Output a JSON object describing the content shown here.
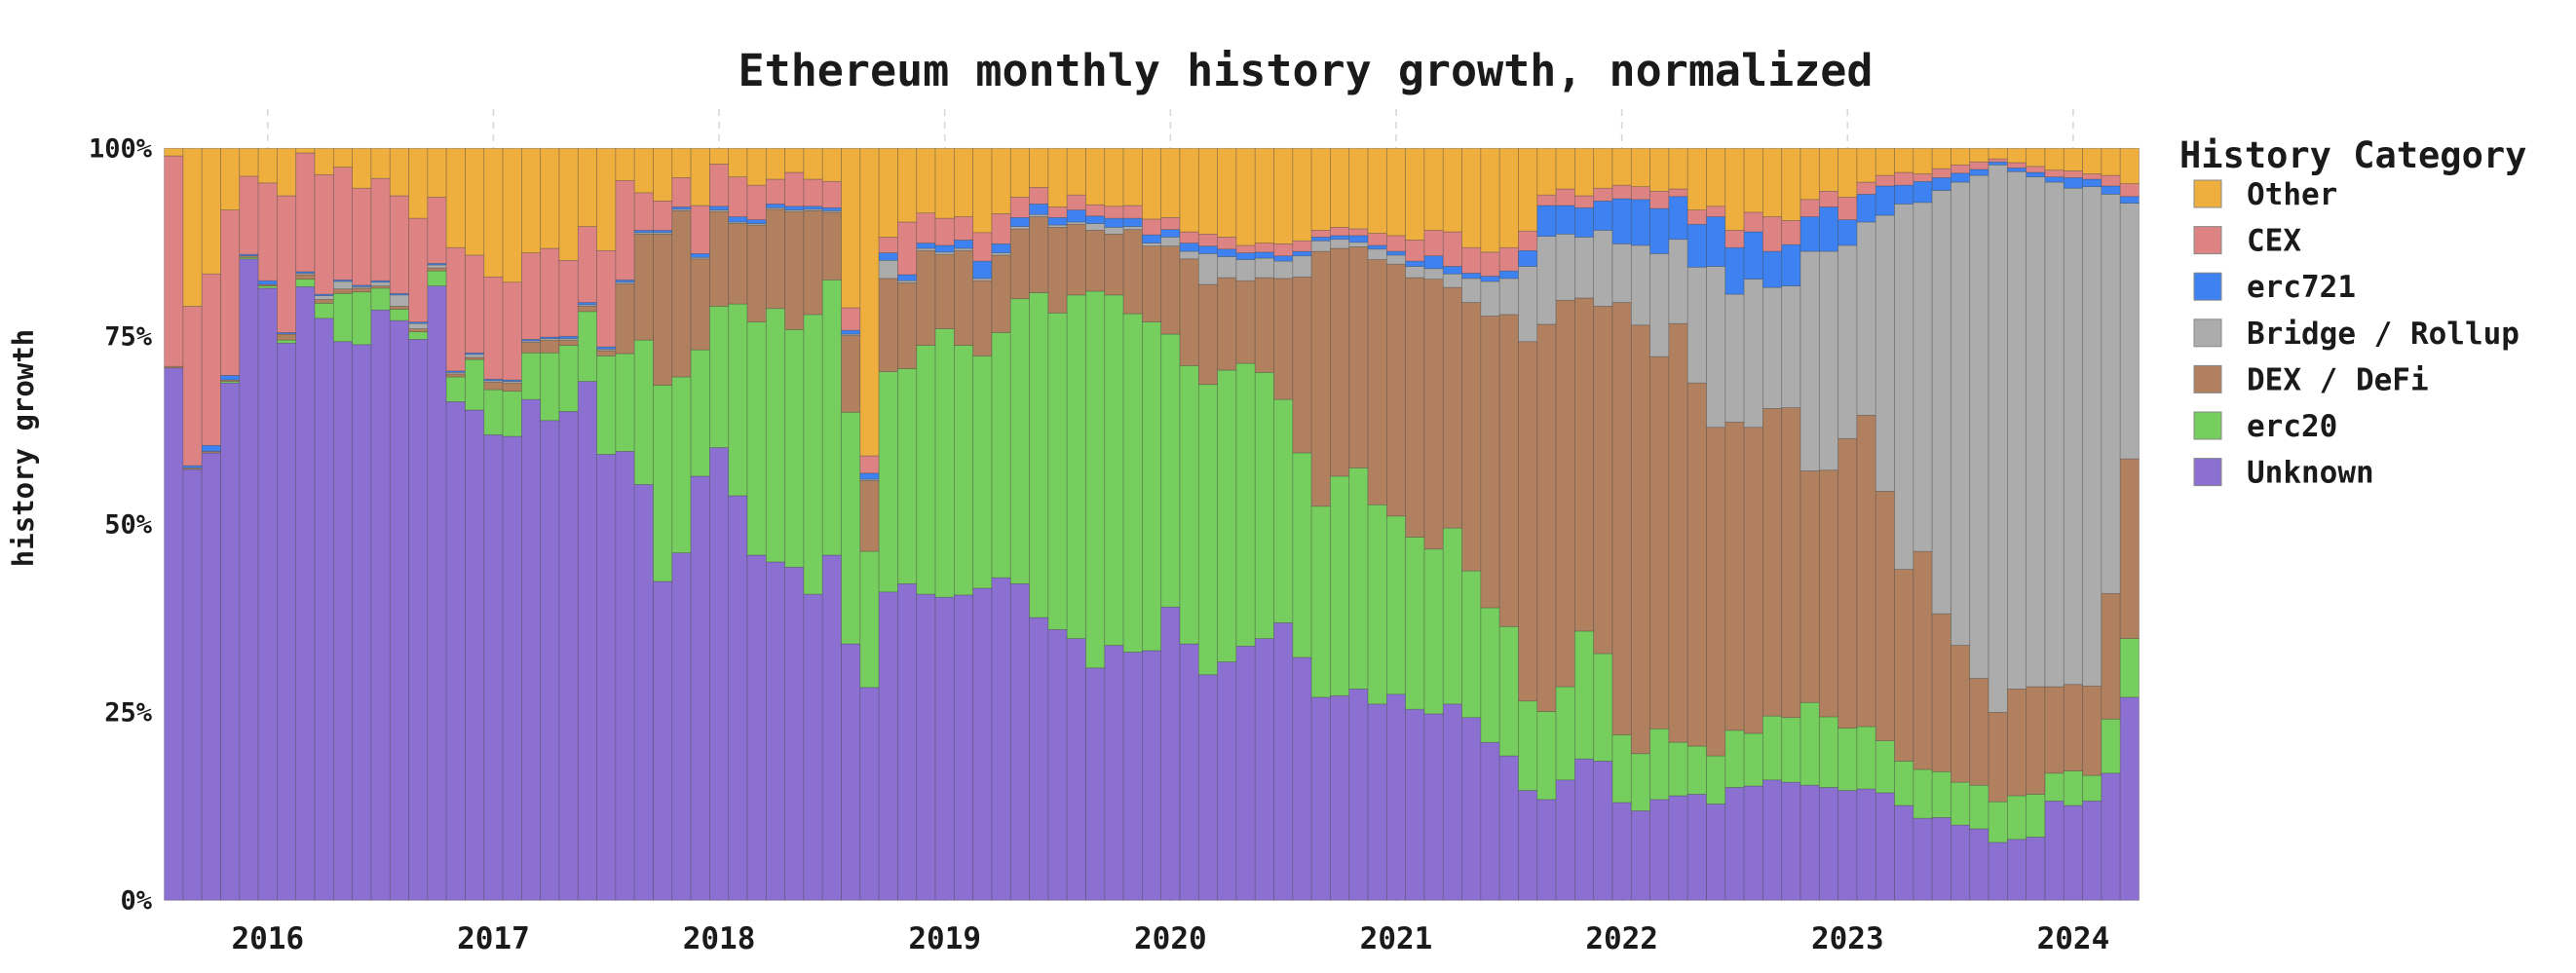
{
  "figure": {
    "title": "Ethereum monthly history growth, normalized",
    "background": "#ffffff",
    "gridline_color": "#d8d8d8"
  },
  "y_axis": {
    "label": "history growth",
    "tick_values": [
      0,
      25,
      50,
      75,
      100
    ],
    "tick_labels": [
      "0%",
      "25%",
      "50%",
      "75%",
      "100%"
    ]
  },
  "x_axis": {
    "tick_labels": [
      "2016",
      "2017",
      "2018",
      "2019",
      "2020",
      "2021",
      "2022",
      "2023",
      "2024"
    ]
  },
  "legend": {
    "title": "History Category",
    "items": [
      {
        "label": "Other",
        "color": "#EFAF3E"
      },
      {
        "label": "CEX",
        "color": "#DE8383"
      },
      {
        "label": "erc721",
        "color": "#3D82F0"
      },
      {
        "label": "Bridge / Rollup",
        "color": "#ACACAC"
      },
      {
        "label": "DEX / DeFi",
        "color": "#B0805F"
      },
      {
        "label": "erc20",
        "color": "#75CE5D"
      },
      {
        "label": "Unknown",
        "color": "#8B70D2"
      }
    ]
  },
  "chart_data": {
    "type": "bar",
    "stacked": true,
    "normalized": true,
    "title": "Ethereum monthly history growth, normalized",
    "xlabel": "",
    "ylabel": "history growth",
    "ylim": [
      0,
      100
    ],
    "legend_position": "right",
    "grid": "dashed-vertical-at-years",
    "stack_order_bottom_to_top": [
      "Unknown",
      "erc20",
      "DEX / DeFi",
      "Bridge / Rollup",
      "erc721",
      "CEX",
      "Other"
    ],
    "x": [
      "2015-08",
      "2015-09",
      "2015-10",
      "2015-11",
      "2015-12",
      "2016-01",
      "2016-02",
      "2016-03",
      "2016-04",
      "2016-05",
      "2016-06",
      "2016-07",
      "2016-08",
      "2016-09",
      "2016-10",
      "2016-11",
      "2016-12",
      "2017-01",
      "2017-02",
      "2017-03",
      "2017-04",
      "2017-05",
      "2017-06",
      "2017-07",
      "2017-08",
      "2017-09",
      "2017-10",
      "2017-11",
      "2017-12",
      "2018-01",
      "2018-02",
      "2018-03",
      "2018-04",
      "2018-05",
      "2018-06",
      "2018-07",
      "2018-08",
      "2018-09",
      "2018-10",
      "2018-11",
      "2018-12",
      "2019-01",
      "2019-02",
      "2019-03",
      "2019-04",
      "2019-05",
      "2019-06",
      "2019-07",
      "2019-08",
      "2019-09",
      "2019-10",
      "2019-11",
      "2019-12",
      "2020-01",
      "2020-02",
      "2020-03",
      "2020-04",
      "2020-05",
      "2020-06",
      "2020-07",
      "2020-08",
      "2020-09",
      "2020-10",
      "2020-11",
      "2020-12",
      "2021-01",
      "2021-02",
      "2021-03",
      "2021-04",
      "2021-05",
      "2021-06",
      "2021-07",
      "2021-08",
      "2021-09",
      "2021-10",
      "2021-11",
      "2021-12",
      "2022-01",
      "2022-02",
      "2022-03",
      "2022-04",
      "2022-05",
      "2022-06",
      "2022-07",
      "2022-08",
      "2022-09",
      "2022-10",
      "2022-11",
      "2022-12",
      "2023-01",
      "2023-02",
      "2023-03",
      "2023-04",
      "2023-05",
      "2023-06",
      "2023-07",
      "2023-08",
      "2023-09",
      "2023-10",
      "2023-11",
      "2023-12",
      "2024-01",
      "2024-02",
      "2024-03",
      "2024-04"
    ],
    "series": [
      {
        "name": "Unknown",
        "color": "#8B70D2",
        "values": [
          70.8,
          57.3,
          59.5,
          68.8,
          85.3,
          81.4,
          74.1,
          81.6,
          77.4,
          74.3,
          73.9,
          78.5,
          77.1,
          74.6,
          81.7,
          66.3,
          65.2,
          61.9,
          61.7,
          66.6,
          63.8,
          65.0,
          69.0,
          59.3,
          59.7,
          55.3,
          42.4,
          46.2,
          56.4,
          60.2,
          53.8,
          45.9,
          45.0,
          44.3,
          40.7,
          45.9,
          34.1,
          28.3,
          41.0,
          42.1,
          40.7,
          40.3,
          40.6,
          41.5,
          42.9,
          42.1,
          37.6,
          36.0,
          34.8,
          30.9,
          33.9,
          33.0,
          33.2,
          39.0,
          34.1,
          30.0,
          31.7,
          33.8,
          34.8,
          36.9,
          32.3,
          27.0,
          27.2,
          28.1,
          26.1,
          27.4,
          25.4,
          24.8,
          26.1,
          24.3,
          21.0,
          19.2,
          14.6,
          13.4,
          16.0,
          18.8,
          18.5,
          13.0,
          11.9,
          13.4,
          13.9,
          14.1,
          12.8,
          15.0,
          15.2,
          16.0,
          15.7,
          15.3,
          15.0,
          14.6,
          14.8,
          14.3,
          12.6,
          10.9,
          11.0,
          10.0,
          9.5,
          7.7,
          8.1,
          8.4,
          13.2,
          12.6,
          13.2,
          16.9,
          27.0
        ]
      },
      {
        "name": "erc20",
        "color": "#75CE5D",
        "values": [
          0,
          0,
          0,
          0.2,
          0.2,
          0.3,
          0.4,
          1.0,
          2.0,
          6.4,
          7.0,
          2.9,
          1.5,
          1.0,
          2.0,
          3.3,
          6.7,
          6.0,
          6.0,
          6.2,
          9.0,
          8.8,
          9.3,
          13.1,
          13.0,
          19.2,
          26.1,
          23.4,
          16.8,
          18.8,
          25.5,
          31.0,
          33.7,
          31.6,
          37.2,
          36.6,
          30.8,
          18.1,
          29.3,
          28.6,
          33.1,
          35.7,
          33.2,
          30.9,
          32.6,
          37.9,
          43.2,
          42.1,
          45.7,
          50.1,
          46.6,
          45.0,
          43.7,
          36.3,
          37.0,
          38.6,
          38.8,
          37.6,
          35.4,
          29.7,
          27.2,
          25.4,
          29.2,
          29.4,
          26.5,
          23.7,
          22.9,
          21.9,
          23.4,
          19.5,
          17.9,
          17.2,
          11.9,
          11.7,
          12.4,
          17.0,
          14.3,
          9.0,
          7.6,
          9.4,
          7.1,
          6.4,
          6.4,
          7.6,
          7.0,
          8.5,
          8.6,
          11.0,
          9.4,
          8.3,
          8.3,
          6.9,
          5.9,
          6.5,
          6.1,
          5.7,
          5.8,
          5.4,
          5.8,
          5.7,
          3.7,
          4.6,
          3.4,
          7.2,
          7.8
        ]
      },
      {
        "name": "DEX / DeFi",
        "color": "#B0805F",
        "values": [
          0.2,
          0.2,
          0.2,
          0.2,
          0.2,
          0.2,
          0.8,
          0.6,
          0.5,
          0.6,
          0.5,
          0.3,
          0.4,
          0.4,
          0.4,
          0.4,
          0.3,
          1.0,
          1.1,
          1.4,
          1.7,
          0.7,
          0.7,
          0.7,
          9.3,
          14.1,
          20.1,
          22.1,
          12.1,
          12.6,
          10.7,
          12.9,
          13.2,
          15.7,
          13.8,
          9.0,
          10.2,
          9.4,
          12.4,
          11.4,
          12.6,
          9.9,
          12.6,
          10.0,
          10.3,
          9.3,
          10.1,
          11.4,
          9.4,
          8.1,
          8.1,
          11.2,
          10.1,
          11.7,
          14.2,
          13.3,
          12.3,
          11.0,
          12.6,
          16.1,
          23.4,
          33.9,
          30.3,
          29.4,
          32.6,
          33.5,
          34.5,
          35.9,
          32.0,
          35.7,
          38.8,
          41.5,
          47.8,
          51.5,
          51.4,
          44.3,
          46.2,
          57.5,
          57.0,
          49.5,
          55.7,
          48.3,
          43.7,
          41.0,
          40.7,
          40.9,
          41.2,
          30.8,
          32.8,
          38.5,
          41.4,
          33.2,
          25.5,
          29.0,
          21.0,
          18.2,
          14.2,
          11.9,
          14.2,
          14.3,
          11.5,
          11.5,
          11.9,
          16.7,
          23.9
        ]
      },
      {
        "name": "Bridge / Rollup",
        "color": "#ACACAC",
        "values": [
          0,
          0,
          0,
          0,
          0,
          0,
          0,
          0.2,
          0.5,
          1.0,
          0.2,
          0.5,
          1.5,
          0.7,
          0.4,
          0.2,
          0.4,
          0.2,
          0.2,
          0.2,
          0.2,
          0.2,
          0.2,
          0.2,
          0.2,
          0.2,
          0.2,
          0.2,
          0.2,
          0.2,
          0.2,
          0.2,
          0.2,
          0.2,
          0.2,
          0.2,
          0.2,
          0.2,
          2.4,
          0.3,
          0.3,
          0.3,
          0.3,
          0.3,
          0.3,
          0.3,
          0.3,
          0.3,
          0.3,
          0.9,
          0.9,
          0.4,
          0.4,
          1.2,
          1.0,
          4.1,
          2.8,
          2.8,
          2.6,
          2.3,
          2.8,
          1.4,
          1.2,
          0.6,
          1.4,
          1.2,
          1.5,
          1.4,
          1.8,
          3.2,
          4.6,
          4.8,
          10.0,
          11.7,
          8.8,
          8.1,
          10.1,
          7.8,
          10.6,
          13.7,
          11.2,
          15.4,
          21.4,
          17.0,
          19.7,
          16.1,
          16.2,
          29.2,
          29.1,
          25.7,
          25.7,
          36.7,
          48.6,
          46.4,
          56.3,
          61.6,
          66.9,
          72.8,
          68.8,
          67.8,
          67.1,
          66.0,
          66.4,
          53.1,
          34.0
        ]
      },
      {
        "name": "erc721",
        "color": "#3D82F0",
        "values": [
          0,
          0.3,
          0.8,
          0.6,
          0.2,
          0.5,
          0.2,
          0.2,
          0.2,
          0.2,
          0.2,
          0.2,
          0.2,
          0.2,
          0.2,
          0.2,
          0.2,
          0.2,
          0.2,
          0.2,
          0.2,
          0.3,
          0.3,
          0.3,
          0.3,
          0.3,
          0.3,
          0.3,
          0.5,
          0.5,
          0.7,
          0.5,
          0.5,
          0.5,
          0.4,
          0.4,
          0.5,
          0.8,
          1.0,
          0.8,
          0.7,
          0.9,
          1.1,
          2.3,
          1.2,
          1.2,
          1.4,
          1.0,
          1.6,
          1.0,
          1.2,
          1.1,
          1.1,
          1.0,
          1.1,
          1.0,
          1.0,
          0.9,
          0.8,
          0.7,
          0.6,
          0.5,
          0.5,
          0.9,
          0.5,
          0.5,
          0.7,
          1.7,
          1.0,
          0.7,
          0.7,
          1.0,
          2.1,
          4.1,
          3.8,
          3.9,
          3.9,
          6.0,
          6.1,
          6.0,
          5.7,
          5.7,
          6.6,
          6.2,
          6.3,
          4.8,
          5.5,
          4.6,
          5.9,
          3.4,
          3.7,
          3.9,
          2.5,
          2.8,
          1.7,
          1.2,
          0.8,
          0.4,
          0.5,
          0.6,
          0.7,
          1.4,
          1.0,
          1.1,
          0.9
        ]
      },
      {
        "name": "CEX",
        "color": "#DE8383",
        "values": [
          28.0,
          21.2,
          22.8,
          22.0,
          10.4,
          13.0,
          18.2,
          15.8,
          15.9,
          15.0,
          12.9,
          13.6,
          13.0,
          13.8,
          8.8,
          16.4,
          13.0,
          13.6,
          13.0,
          11.5,
          11.8,
          10.1,
          10.1,
          12.8,
          13.2,
          5.0,
          3.9,
          3.9,
          6.4,
          5.6,
          5.3,
          4.6,
          3.3,
          4.5,
          3.6,
          3.5,
          3.0,
          2.3,
          2.1,
          7.0,
          4.0,
          3.6,
          3.1,
          3.8,
          4.0,
          2.7,
          2.2,
          1.4,
          2.0,
          1.5,
          1.6,
          1.7,
          2.1,
          1.6,
          1.5,
          1.6,
          1.6,
          1.0,
          1.2,
          1.6,
          1.4,
          0.9,
          1.1,
          0.9,
          1.6,
          2.1,
          2.8,
          3.4,
          4.6,
          3.4,
          3.2,
          3.1,
          2.6,
          1.4,
          2.2,
          1.6,
          1.7,
          1.8,
          1.7,
          2.3,
          1.0,
          1.9,
          1.4,
          2.3,
          2.6,
          4.6,
          3.2,
          2.3,
          2.1,
          3.0,
          1.6,
          1.4,
          1.7,
          1.0,
          1.2,
          1.1,
          1.0,
          0.4,
          0.7,
          0.8,
          0.9,
          0.9,
          0.7,
          1.4,
          1.7
        ]
      },
      {
        "name": "Other",
        "color": "#EFAF3E",
        "values": [
          1.0,
          21.0,
          16.7,
          8.2,
          3.7,
          4.6,
          6.3,
          0.6,
          3.5,
          2.5,
          5.3,
          4.0,
          6.3,
          9.3,
          6.5,
          13.2,
          14.2,
          17.1,
          17.8,
          13.9,
          13.3,
          14.9,
          10.4,
          13.6,
          4.3,
          5.9,
          7.0,
          3.9,
          7.6,
          2.1,
          3.8,
          4.9,
          4.1,
          3.2,
          4.1,
          4.4,
          21.2,
          40.9,
          11.8,
          9.8,
          8.6,
          9.3,
          9.1,
          11.2,
          8.7,
          6.5,
          5.2,
          7.8,
          6.2,
          7.5,
          7.7,
          7.6,
          9.4,
          9.2,
          11.1,
          11.4,
          11.8,
          12.9,
          12.6,
          12.7,
          12.3,
          10.9,
          10.5,
          10.7,
          11.3,
          11.6,
          12.2,
          10.9,
          11.1,
          13.2,
          13.8,
          13.2,
          11.0,
          6.2,
          5.4,
          6.3,
          5.3,
          4.9,
          5.1,
          5.7,
          5.4,
          8.2,
          7.7,
          10.9,
          8.5,
          9.1,
          9.6,
          6.8,
          5.7,
          6.5,
          4.5,
          3.6,
          3.2,
          3.4,
          2.7,
          2.2,
          1.8,
          1.4,
          1.9,
          2.4,
          2.9,
          3.0,
          3.4,
          3.6,
          4.7
        ]
      }
    ]
  }
}
